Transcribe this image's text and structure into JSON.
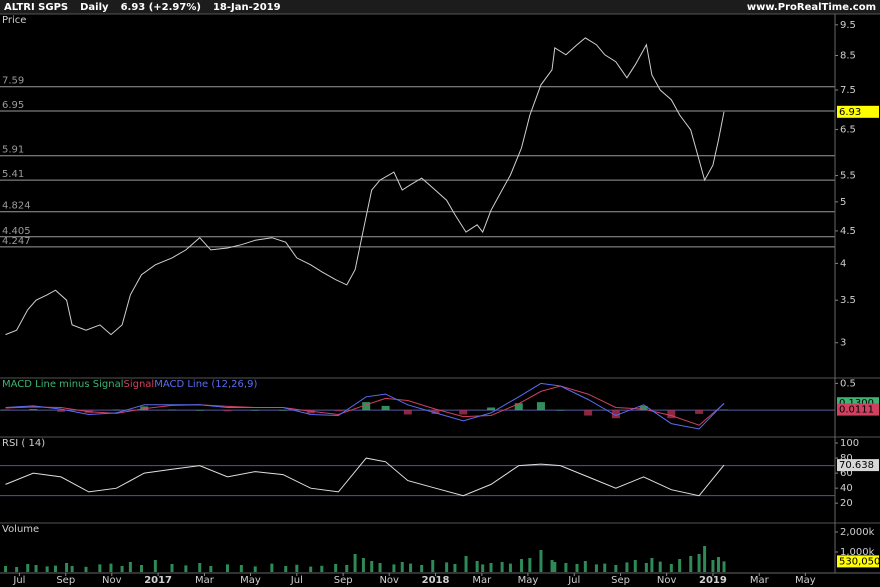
{
  "header": {
    "name": "ALTRI SGPS",
    "period": "Daily",
    "quote": "6.93 (+2.97%)",
    "date": "18-Jan-2019",
    "site": "www.ProRealTime.com"
  },
  "chart_data": [
    {
      "type": "line",
      "title": "Price",
      "log_scale": true,
      "color": "#d0d0d0",
      "last_color": "#ffff00",
      "x": [
        2016.45,
        2016.49,
        2016.53,
        2016.56,
        2016.6,
        2016.63,
        2016.67,
        2016.69,
        2016.74,
        2016.79,
        2016.83,
        2016.87,
        2016.9,
        2016.94,
        2016.99,
        2017.05,
        2017.1,
        2017.15,
        2017.19,
        2017.25,
        2017.3,
        2017.35,
        2017.41,
        2017.46,
        2017.5,
        2017.55,
        2017.59,
        2017.64,
        2017.68,
        2017.71,
        2017.74,
        2017.77,
        2017.8,
        2017.85,
        2017.88,
        2017.91,
        2017.95,
        2017.99,
        2018.04,
        2018.07,
        2018.11,
        2018.15,
        2018.17,
        2018.2,
        2018.24,
        2018.27,
        2018.31,
        2018.34,
        2018.38,
        2018.42,
        2018.43,
        2018.47,
        2018.51,
        2018.54,
        2018.58,
        2018.61,
        2018.65,
        2018.69,
        2018.72,
        2018.76,
        2018.78,
        2018.81,
        2018.85,
        2018.88,
        2018.92,
        2018.95,
        2018.97,
        2019.0,
        2019.02,
        2019.04
      ],
      "values": [
        3.09,
        3.14,
        3.38,
        3.5,
        3.57,
        3.63,
        3.5,
        3.2,
        3.14,
        3.2,
        3.09,
        3.2,
        3.57,
        3.84,
        3.98,
        4.08,
        4.2,
        4.39,
        4.2,
        4.23,
        4.28,
        4.35,
        4.39,
        4.32,
        4.08,
        3.98,
        3.88,
        3.77,
        3.7,
        3.91,
        4.52,
        5.22,
        5.41,
        5.57,
        5.22,
        5.32,
        5.45,
        5.26,
        5.03,
        4.77,
        4.48,
        4.6,
        4.48,
        4.85,
        5.22,
        5.51,
        6.08,
        6.85,
        7.64,
        8.07,
        8.74,
        8.52,
        8.84,
        9.06,
        8.84,
        8.52,
        8.31,
        7.84,
        8.22,
        8.84,
        7.92,
        7.5,
        7.24,
        6.85,
        6.49,
        5.82,
        5.41,
        5.71,
        6.26,
        6.93
      ],
      "ylim": [
        2.64,
        9.88
      ],
      "yticks": [
        9.5,
        8.5,
        7.5,
        6.5,
        5.5,
        5,
        4.5,
        4,
        3.5,
        3
      ],
      "levels": [
        7.59,
        6.95,
        5.91,
        5.41,
        4.824,
        4.405,
        4.247
      ],
      "level_color": "#9a9a9a"
    },
    {
      "type": "line",
      "x": [
        2016.45,
        2016.55,
        2016.65,
        2016.75,
        2016.85,
        2016.95,
        2017.05,
        2017.15,
        2017.25,
        2017.35,
        2017.45,
        2017.55,
        2017.65,
        2017.75,
        2017.82,
        2017.9,
        2018.0,
        2018.1,
        2018.2,
        2018.3,
        2018.38,
        2018.45,
        2018.55,
        2018.65,
        2018.75,
        2018.85,
        2018.95,
        2019.04
      ],
      "series": [
        {
          "name": "MACD Line minus Signal",
          "kind": "histogram",
          "color": "#3cb371",
          "negative_color": "#b03050",
          "values": [
            0.01,
            0.02,
            -0.03,
            -0.05,
            0.01,
            0.07,
            0.01,
            0,
            -0.02,
            0,
            0,
            -0.06,
            -0.02,
            0.15,
            0.08,
            -0.08,
            -0.07,
            -0.08,
            0.05,
            0.13,
            0.15,
            0,
            -0.1,
            -0.15,
            0.08,
            -0.15,
            -0.07,
            0.0111
          ]
        },
        {
          "name": "Signal",
          "color": "#d04060",
          "values": [
            0.04,
            0.06,
            0.05,
            -0.03,
            -0.06,
            0.03,
            0.09,
            0.1,
            0.07,
            0.05,
            0.05,
            -0.02,
            -0.08,
            0.1,
            0.22,
            0.18,
            0.02,
            -0.12,
            -0.1,
            0.12,
            0.35,
            0.45,
            0.3,
            0.05,
            0.02,
            -0.1,
            -0.28,
            0.1189
          ]
        },
        {
          "name": "MACD Line (12,26,9)",
          "color": "#5a6cf0",
          "values": [
            0.05,
            0.08,
            0.02,
            -0.08,
            -0.05,
            0.1,
            0.1,
            0.1,
            0.05,
            0.05,
            0.05,
            -0.08,
            -0.1,
            0.25,
            0.3,
            0.1,
            -0.05,
            -0.2,
            -0.05,
            0.25,
            0.5,
            0.45,
            0.2,
            -0.1,
            0.1,
            -0.25,
            -0.35,
            0.13
          ]
        }
      ],
      "ylim": [
        -0.5,
        0.6
      ],
      "yticks": [
        0.5
      ],
      "levels": [
        0
      ],
      "level_color": "#5a5aa0",
      "y_labels": [
        {
          "value": 0.13,
          "label": "0.1300",
          "color": "#3cb371"
        },
        {
          "value": 0.0111,
          "label": "0.0111",
          "color": "#d04060"
        }
      ]
    },
    {
      "type": "line",
      "title": "RSI ( 14)",
      "color": "#e0e0e0",
      "last_color": "#d8d8d8",
      "x": [
        2016.45,
        2016.55,
        2016.65,
        2016.75,
        2016.85,
        2016.95,
        2017.05,
        2017.15,
        2017.25,
        2017.35,
        2017.45,
        2017.55,
        2017.65,
        2017.75,
        2017.82,
        2017.9,
        2018.0,
        2018.1,
        2018.2,
        2018.3,
        2018.38,
        2018.45,
        2018.55,
        2018.65,
        2018.75,
        2018.85,
        2018.95,
        2019.04
      ],
      "values": [
        45,
        60,
        55,
        35,
        40,
        60,
        65,
        70,
        55,
        62,
        58,
        40,
        35,
        80,
        75,
        50,
        40,
        30,
        45,
        70,
        72,
        70,
        55,
        40,
        55,
        38,
        30,
        70.638
      ],
      "ylim": [
        -5,
        108
      ],
      "yticks": [
        100,
        80,
        60,
        40,
        20
      ],
      "levels": [
        70,
        30
      ],
      "level_color": "#6a4a9a"
    },
    {
      "type": "bar",
      "title": "Volume",
      "color": "#2e8b57",
      "x": [
        2016.45,
        2016.49,
        2016.53,
        2016.56,
        2016.6,
        2016.63,
        2016.67,
        2016.69,
        2016.74,
        2016.79,
        2016.83,
        2016.87,
        2016.9,
        2016.94,
        2016.99,
        2017.05,
        2017.1,
        2017.15,
        2017.19,
        2017.25,
        2017.3,
        2017.35,
        2017.41,
        2017.46,
        2017.5,
        2017.55,
        2017.59,
        2017.64,
        2017.68,
        2017.71,
        2017.74,
        2017.77,
        2017.8,
        2017.85,
        2017.88,
        2017.91,
        2017.95,
        2017.99,
        2018.04,
        2018.07,
        2018.11,
        2018.15,
        2018.17,
        2018.2,
        2018.24,
        2018.27,
        2018.31,
        2018.34,
        2018.38,
        2018.42,
        2018.43,
        2018.47,
        2018.51,
        2018.54,
        2018.58,
        2018.61,
        2018.65,
        2018.69,
        2018.72,
        2018.76,
        2018.78,
        2018.81,
        2018.85,
        2018.88,
        2018.92,
        2018.95,
        2018.97,
        2019.0,
        2019.02,
        2019.04
      ],
      "values": [
        300000,
        250000,
        400000,
        350000,
        280000,
        320000,
        450000,
        300000,
        260000,
        380000,
        420000,
        300000,
        500000,
        350000,
        600000,
        400000,
        330000,
        450000,
        300000,
        380000,
        350000,
        280000,
        420000,
        300000,
        360000,
        270000,
        310000,
        400000,
        350000,
        900000,
        700000,
        550000,
        450000,
        380000,
        500000,
        420000,
        350000,
        600000,
        480000,
        400000,
        800000,
        550000,
        380000,
        450000,
        500000,
        420000,
        650000,
        700000,
        1100000,
        600000,
        500000,
        450000,
        400000,
        550000,
        380000,
        420000,
        350000,
        480000,
        600000,
        450000,
        700000,
        520000,
        400000,
        650000,
        800000,
        900000,
        1300000,
        600000,
        750000,
        530050
      ],
      "ylim": [
        0,
        2450000
      ],
      "yticks": [
        {
          "value": 2000000,
          "label": "2,000k"
        },
        {
          "value": 1000000,
          "label": "1,000k"
        }
      ],
      "y_labels": [
        {
          "value": 530050,
          "label": "530,050",
          "color": "#ffff00"
        }
      ],
      "xlim": [
        2016.43,
        2019.44
      ],
      "xticks": [
        {
          "value": 2016.5,
          "label": "Jul"
        },
        {
          "value": 2016.667,
          "label": "Sep"
        },
        {
          "value": 2016.833,
          "label": "Nov"
        },
        {
          "value": 2017,
          "label": "2017"
        },
        {
          "value": 2017.167,
          "label": "Mar"
        },
        {
          "value": 2017.333,
          "label": "May"
        },
        {
          "value": 2017.5,
          "label": "Jul"
        },
        {
          "value": 2017.667,
          "label": "Sep"
        },
        {
          "value": 2017.833,
          "label": "Nov"
        },
        {
          "value": 2018,
          "label": "2018"
        },
        {
          "value": 2018.167,
          "label": "Mar"
        },
        {
          "value": 2018.333,
          "label": "May"
        },
        {
          "value": 2018.5,
          "label": "Jul"
        },
        {
          "value": 2018.667,
          "label": "Sep"
        },
        {
          "value": 2018.833,
          "label": "Nov"
        },
        {
          "value": 2019,
          "label": "2019"
        },
        {
          "value": 2019.167,
          "label": "Mar"
        },
        {
          "value": 2019.333,
          "label": "May"
        }
      ]
    }
  ]
}
